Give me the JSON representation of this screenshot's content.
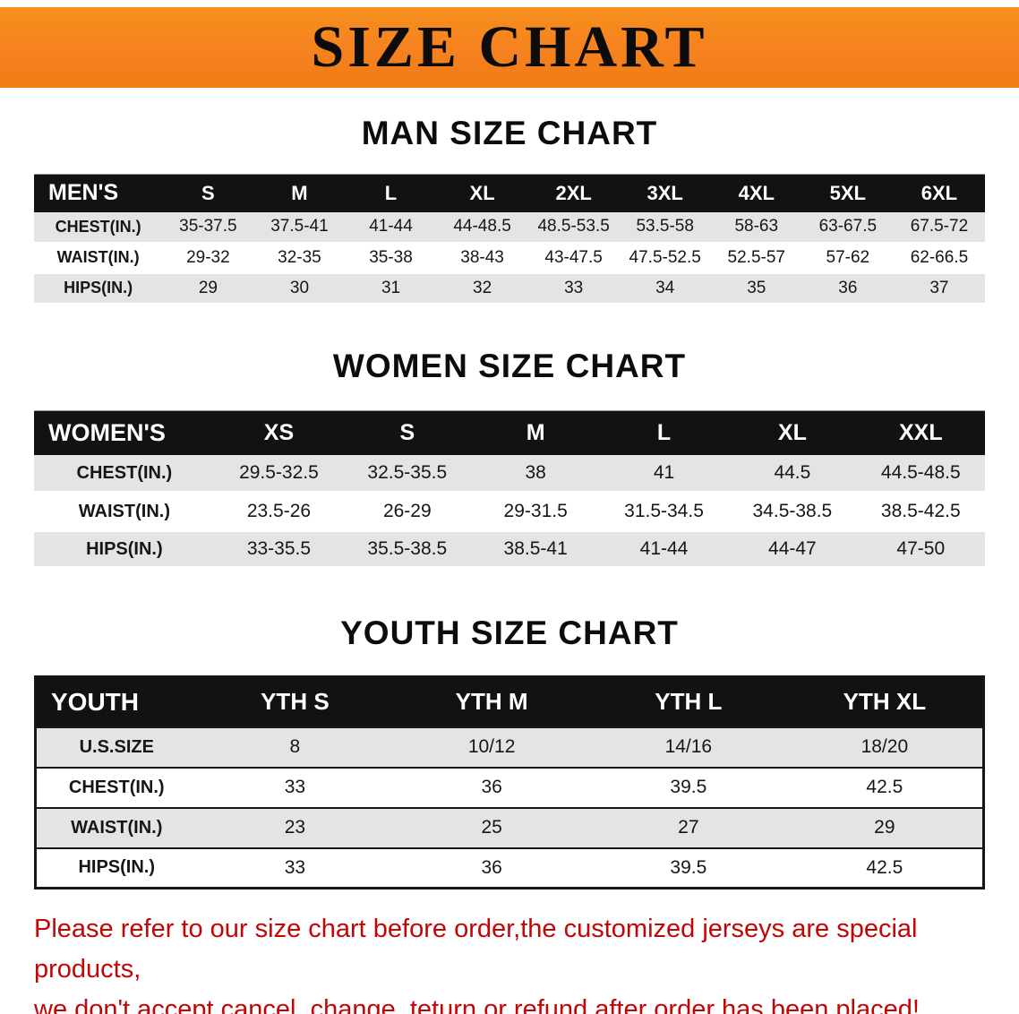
{
  "banner": {
    "title": "SIZE CHART"
  },
  "men": {
    "heading": "MAN SIZE CHART",
    "table": {
      "header": [
        "MEN'S",
        "S",
        "M",
        "L",
        "XL",
        "2XL",
        "3XL",
        "4XL",
        "5XL",
        "6XL"
      ],
      "rows": [
        [
          "CHEST(IN.)",
          "35-37.5",
          "37.5-41",
          "41-44",
          "44-48.5",
          "48.5-53.5",
          "53.5-58",
          "58-63",
          "63-67.5",
          "67.5-72"
        ],
        [
          "WAIST(IN.)",
          "29-32",
          "32-35",
          "35-38",
          "38-43",
          "43-47.5",
          "47.5-52.5",
          "52.5-57",
          "57-62",
          "62-66.5"
        ],
        [
          "HIPS(IN.)",
          "29",
          "30",
          "31",
          "32",
          "33",
          "34",
          "35",
          "36",
          "37"
        ]
      ]
    }
  },
  "women": {
    "heading": "WOMEN SIZE CHART",
    "table": {
      "header": [
        "WOMEN'S",
        "XS",
        "S",
        "M",
        "L",
        "XL",
        "XXL"
      ],
      "rows": [
        [
          "CHEST(IN.)",
          "29.5-32.5",
          "32.5-35.5",
          "38",
          "41",
          "44.5",
          "44.5-48.5"
        ],
        [
          "WAIST(IN.)",
          "23.5-26",
          "26-29",
          "29-31.5",
          "31.5-34.5",
          "34.5-38.5",
          "38.5-42.5"
        ],
        [
          "HIPS(IN.)",
          "33-35.5",
          "35.5-38.5",
          "38.5-41",
          "41-44",
          "44-47",
          "47-50"
        ]
      ]
    }
  },
  "youth": {
    "heading": "YOUTH SIZE CHART",
    "table": {
      "header": [
        "YOUTH",
        "YTH S",
        "YTH M",
        "YTH L",
        "YTH XL"
      ],
      "rows": [
        [
          "U.S.SIZE",
          "8",
          "10/12",
          "14/16",
          "18/20"
        ],
        [
          "CHEST(IN.)",
          "33",
          "36",
          "39.5",
          "42.5"
        ],
        [
          "WAIST(IN.)",
          "23",
          "25",
          "27",
          "29"
        ],
        [
          "HIPS(IN.)",
          "33",
          "36",
          "39.5",
          "42.5"
        ]
      ]
    }
  },
  "disclaimer": {
    "line1": "Please refer to our size chart before order,the customized jerseys are special products,",
    "line2": "we don't accept cancel, change, teturn or refund after order has been placed!"
  },
  "colors": {
    "banner_bg": "#F5821F",
    "table_header_bg": "#121212",
    "row_alt_bg": "#E4E4E4",
    "disclaimer_red": "#C40505"
  }
}
